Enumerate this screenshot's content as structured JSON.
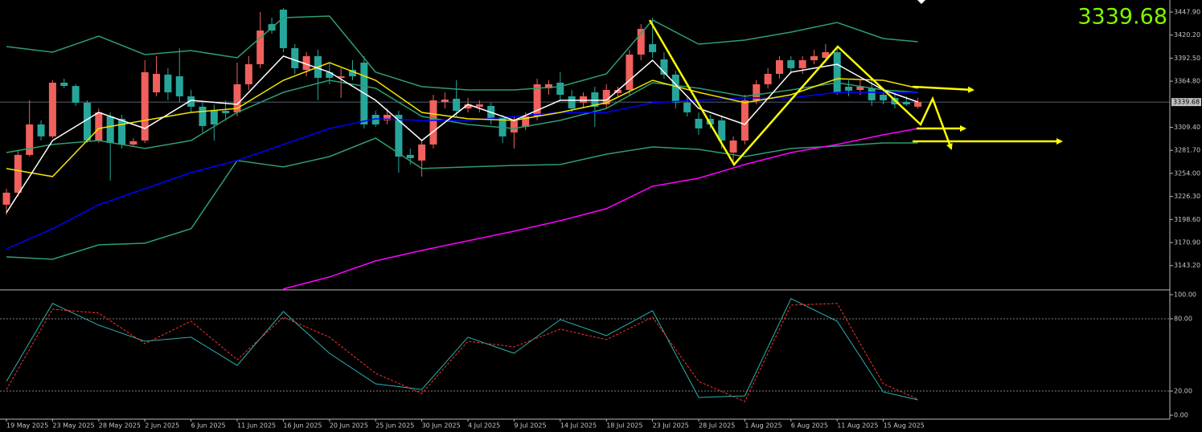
{
  "chart_data": {
    "type": "candlestick",
    "categories": [
      "19 May 2025",
      null,
      null,
      null,
      "23 May 2025",
      null,
      null,
      null,
      "28 May 2025",
      null,
      null,
      null,
      "2 Jun 2025",
      null,
      null,
      null,
      "6 Jun 2025",
      null,
      null,
      null,
      "11 Jun 2025",
      null,
      null,
      null,
      "16 Jun 2025",
      null,
      null,
      null,
      "20 Jun 2025",
      null,
      null,
      null,
      "25 Jun 2025",
      null,
      null,
      null,
      "30 Jun 2025",
      null,
      null,
      null,
      "4 Jul 2025",
      null,
      null,
      null,
      "9 Jul 2025",
      null,
      null,
      null,
      "14 Jul 2025",
      null,
      null,
      null,
      "18 Jul 2025",
      null,
      null,
      null,
      "23 Jul 2025",
      null,
      null,
      null,
      "28 Jul 2025",
      null,
      null,
      null,
      "1 Aug 2025",
      null,
      null,
      null,
      "6 Aug 2025",
      null,
      null,
      null,
      "11 Aug 2025",
      null,
      null,
      null,
      "15 Aug 2025",
      null,
      null,
      null
    ],
    "open": [
      3216.3,
      3230.8,
      3276.2,
      3312.8,
      3298.4,
      3363,
      3359,
      3338.9,
      3293.5,
      3322.5,
      3319.6,
      3288.7,
      3293.5,
      3351.4,
      3372.7,
      3370.7,
      3346.6,
      3334.1,
      3330.2,
      3329.2,
      3327.3,
      3361.1,
      3385.2,
      3433.4,
      3450.8,
      3404.5,
      3378.4,
      3394.9,
      3375.6,
      3368.8,
      3378.4,
      3387.1,
      3324.4,
      3317.7,
      3324.4,
      3276.2,
      3269.4,
      3288.7,
      3339.8,
      3343.7,
      3332.1,
      3334.1,
      3335,
      3320.5,
      3303.2,
      3309.9,
      3322.5,
      3356.3,
      3363,
      3346.6,
      3338.9,
      3351.4,
      3336.9,
      3350.5,
      3354.3,
      3396.8,
      3409.3,
      3391,
      3372.7,
      3338.9,
      3319.6,
      3319.6,
      3317.7,
      3279,
      3293.5,
      3341.8,
      3361.1,
      3373.6,
      3390,
      3380.4,
      3390,
      3392.9,
      3399.7,
      3358.2,
      3354.3,
      3356.3,
      3348.5,
      3344.7,
      3339.8,
      3334.1
    ],
    "high": [
      3235.6,
      3281,
      3341.8,
      3317.7,
      3365.9,
      3367.8,
      3361.1,
      3341.8,
      3332.1,
      3327.3,
      3324.4,
      3296.4,
      3390,
      3394.9,
      3380.4,
      3404.5,
      3354.3,
      3338.9,
      3336.9,
      3341.8,
      3387.1,
      3394.9,
      3447.9,
      3441.2,
      3452.8,
      3409.3,
      3399.7,
      3402.6,
      3387.1,
      3380.4,
      3390,
      3394.9,
      3329.2,
      3332.1,
      3329.2,
      3283.9,
      3293.5,
      3348.5,
      3351.4,
      3365.9,
      3344.7,
      3341.8,
      3338.9,
      3324.4,
      3322.5,
      3327.3,
      3367.8,
      3365.9,
      3375.6,
      3354.3,
      3351.4,
      3358.2,
      3361.1,
      3358.2,
      3402.6,
      3433.4,
      3441.2,
      3399.7,
      3377.5,
      3344.7,
      3327.3,
      3324.4,
      3322.5,
      3298.4,
      3348.5,
      3365.9,
      3380.4,
      3394.9,
      3394.9,
      3394.9,
      3402.6,
      3409.3,
      3404.5,
      3365.9,
      3365.9,
      3365.9,
      3354.3,
      3351.4,
      3346.6,
      3344.7
    ],
    "low": [
      3203.8,
      3226,
      3274.2,
      3293.5,
      3296.4,
      3356.3,
      3335,
      3290.6,
      3290.6,
      3245.3,
      3283.9,
      3285.8,
      3290.6,
      3346.6,
      3341.8,
      3338.9,
      3327.3,
      3303.2,
      3293.5,
      3317.7,
      3322.5,
      3354.3,
      3380.4,
      3421.9,
      3399.7,
      3373.6,
      3370.7,
      3341.8,
      3361.1,
      3344.7,
      3365.9,
      3308,
      3309.9,
      3312.8,
      3254.9,
      3264.6,
      3250.1,
      3283.9,
      3332.1,
      3322.5,
      3327.3,
      3327.3,
      3312.8,
      3290.6,
      3283.9,
      3306.1,
      3317.7,
      3348.5,
      3341.8,
      3327.3,
      3332.1,
      3309.9,
      3332.1,
      3346.6,
      3348.5,
      3390,
      3392.9,
      3367.8,
      3332.1,
      3322.5,
      3300.3,
      3308,
      3283.9,
      3264.6,
      3288.7,
      3336.9,
      3356.3,
      3367.8,
      3373.6,
      3373.6,
      3385.2,
      3387.1,
      3348.5,
      3346.6,
      3348.5,
      3335,
      3336.9,
      3332.1,
      3335,
      3332.1
    ],
    "close": [
      3230.8,
      3276.2,
      3312.8,
      3298.4,
      3363,
      3359.1,
      3338.9,
      3293.5,
      3327.3,
      3290.6,
      3288.7,
      3292.6,
      3375.6,
      3373.6,
      3351.4,
      3346.6,
      3334.1,
      3310.9,
      3312.8,
      3326.3,
      3361.1,
      3385.2,
      3425.7,
      3425.7,
      3404.5,
      3380.4,
      3394.9,
      3368.8,
      3368.8,
      3370.7,
      3370.7,
      3312.8,
      3312.8,
      3324.4,
      3274.2,
      3272.3,
      3288.7,
      3341.8,
      3342.7,
      3329.2,
      3336.9,
      3336.9,
      3320.5,
      3298.4,
      3317.7,
      3322.5,
      3361.1,
      3361.1,
      3348.5,
      3332.1,
      3346.6,
      3334.1,
      3354.3,
      3354.3,
      3396.8,
      3427.7,
      3399.7,
      3372.7,
      3338.9,
      3327.3,
      3308,
      3312.8,
      3293.5,
      3293.5,
      3341.8,
      3361.1,
      3373.6,
      3390,
      3380.4,
      3390,
      3394.9,
      3399.7,
      3351.4,
      3353.4,
      3358.2,
      3341.8,
      3341.8,
      3336.9,
      3336.9,
      3339.68
    ],
    "up_color": "#f0605d",
    "down_color": "#26a69a",
    "ylim": [
      3114.9,
      3462.4
    ],
    "yticks": [
      {
        "value": 3447.9,
        "label": "3447.90"
      },
      {
        "value": 3420.2,
        "label": "3420.20"
      },
      {
        "value": 3392.5,
        "label": "3392.50"
      },
      {
        "value": 3364.8,
        "label": "3364.80"
      },
      {
        "value": 3309.4,
        "label": "3309.40"
      },
      {
        "value": 3281.7,
        "label": "3281.70"
      },
      {
        "value": 3254,
        "label": "3254.00"
      },
      {
        "value": 3226.3,
        "label": "3226.30"
      },
      {
        "value": 3198.6,
        "label": "3198.60"
      },
      {
        "value": 3170.9,
        "label": "3170.90"
      },
      {
        "value": 3143.2,
        "label": "3143.20"
      }
    ],
    "last_price": 3339.68,
    "last_price_color": "#7cfc00",
    "overlays": {
      "x": [
        0,
        4,
        8,
        12,
        16,
        20,
        24,
        28,
        32,
        36,
        40,
        44,
        48,
        52,
        56,
        60,
        64,
        68,
        72,
        76,
        79
      ],
      "series": [
        {
          "color": "#2e9e6e",
          "values": [
            3406.4,
            3399.7,
            3419,
            3396.8,
            3401.6,
            3392.9,
            3441.2,
            3443.1,
            3375.6,
            3358.2,
            3354.3,
            3354.3,
            3358.2,
            3373.6,
            3438.3,
            3409.3,
            3414.2,
            3423.8,
            3435.4,
            3416.1,
            3412.2
          ]
        },
        {
          "color": "#2e9e6e",
          "values": [
            3279,
            3288.7,
            3293.5,
            3283.9,
            3293.5,
            3327.3,
            3351.4,
            3365.9,
            3356.3,
            3322.5,
            3312.8,
            3308,
            3317.7,
            3332.1,
            3363,
            3356.3,
            3346.6,
            3354.3,
            3363,
            3354.3,
            3351.4
          ]
        },
        {
          "color": "#2e9e6e",
          "values": [
            3153.6,
            3150.7,
            3168.1,
            3170,
            3187.4,
            3269.4,
            3261.7,
            3274.2,
            3296.4,
            3259.8,
            3261.7,
            3263.6,
            3264.6,
            3277.1,
            3285.8,
            3282.9,
            3274.2,
            3283.9,
            3286.8,
            3290.6,
            3290.6
          ]
        },
        {
          "color": "#0000ff",
          "values": [
            3163.2,
            3187.4,
            3216.3,
            3235.6,
            3254.9,
            3269.4,
            3288.7,
            3308,
            3319.6,
            3317.7,
            3317.7,
            3322.5,
            3327.3,
            3327.3,
            3338.9,
            3341.8,
            3344.7,
            3344.7,
            3351.4,
            3351.4,
            3351.4
          ]
        },
        {
          "color": "#ff00ff",
          "values": [
            null,
            null,
            null,
            null,
            null,
            null,
            3115,
            3129.5,
            3148.8,
            3161.3,
            3172.9,
            3184.5,
            3197,
            3211.5,
            3238.5,
            3248.2,
            3264.6,
            3279,
            3288.7,
            3300.3,
            3308
          ]
        },
        {
          "color": "#f2e600",
          "values": [
            3259.8,
            3250.1,
            3308,
            3317.7,
            3327.3,
            3332.1,
            3365.9,
            3387.1,
            3365.9,
            3327.3,
            3319.6,
            3317.7,
            3327.3,
            3338.9,
            3365.9,
            3351.4,
            3338.9,
            3348.5,
            3367.8,
            3365.9,
            3356.3
          ]
        },
        {
          "color": "#ffffff",
          "values": [
            3206.7,
            3293.5,
            3327.3,
            3308,
            3341.8,
            3336.9,
            3394.9,
            3375.6,
            3341.8,
            3293.5,
            3336.9,
            3317.7,
            3341.8,
            3341.8,
            3390,
            3332.1,
            3312.8,
            3375.6,
            3385.2,
            3354.3,
            3339.8
          ]
        }
      ]
    },
    "oscillator": {
      "ylim": [
        -3.3,
        103.3
      ],
      "yticks": [
        {
          "value": 100,
          "label": "100.00"
        },
        {
          "value": 80,
          "label": "80.00"
        },
        {
          "value": 20,
          "label": "20.00"
        },
        {
          "value": 0,
          "label": "0.00"
        }
      ],
      "levels": [
        80,
        20
      ],
      "series": [
        {
          "color": "#2ab3b3",
          "dashed": false,
          "values": [
            28,
            92.7,
            74.7,
            61.3,
            64.7,
            41.3,
            86,
            51.3,
            26,
            21.3,
            64.7,
            51.3,
            79.3,
            66,
            86.7,
            14.7,
            16,
            96.7,
            78,
            19.3,
            12.7
          ]
        },
        {
          "color": "#ff3030",
          "dashed": true,
          "values": [
            21.3,
            88,
            84.7,
            59.3,
            78,
            46,
            81.3,
            64.7,
            34.7,
            18,
            61.3,
            56.7,
            71.3,
            62.7,
            81.3,
            28,
            11.3,
            91.3,
            92.7,
            26,
            13.3
          ]
        }
      ]
    }
  }
}
